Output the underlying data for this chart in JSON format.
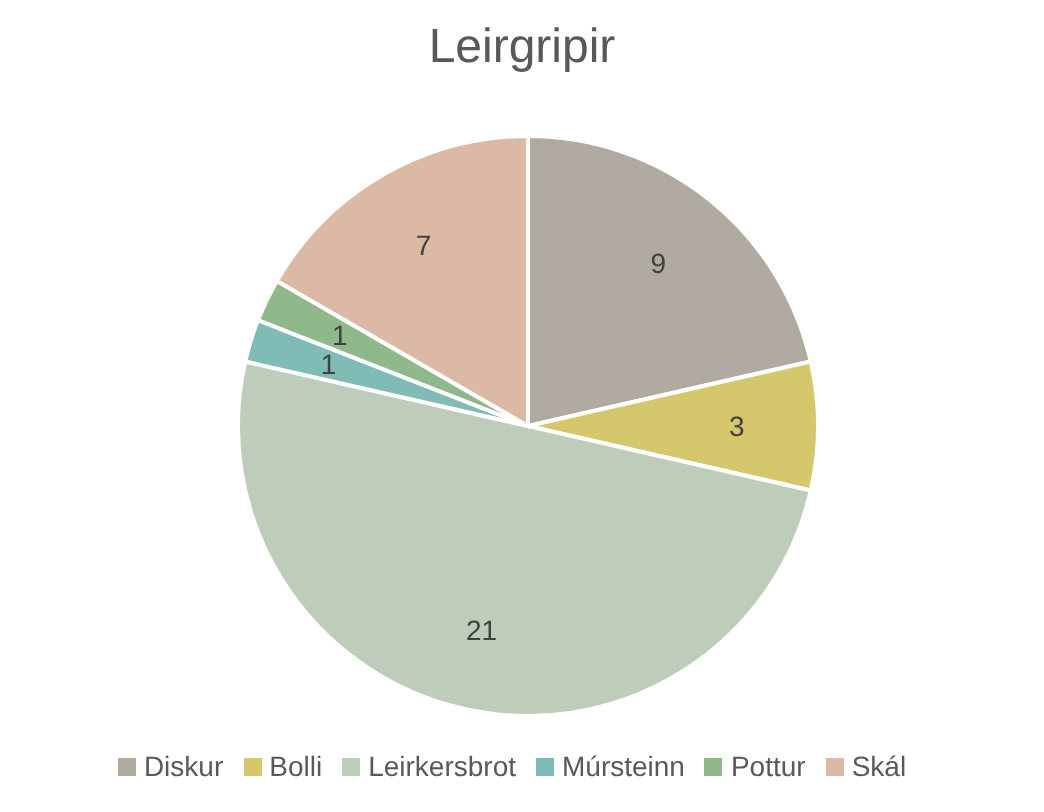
{
  "chart_data": {
    "type": "pie",
    "title": "Leirgripir",
    "categories": [
      "Diskur",
      "Bolli",
      "Leirkersbrot",
      "Múrsteinn",
      "Pottur",
      "Skál"
    ],
    "values": [
      9,
      3,
      21,
      1,
      1,
      7
    ],
    "colors": [
      "#b1aaa1",
      "#d5c76c",
      "#bdcdb9",
      "#80bcb5",
      "#90b98b",
      "#dcb9a5"
    ],
    "data_labels": true,
    "legend": "bottom"
  }
}
